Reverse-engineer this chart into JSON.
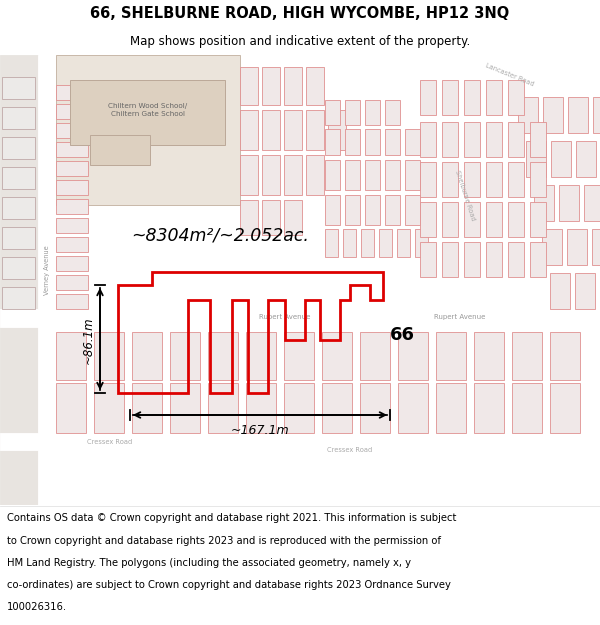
{
  "title_line1": "66, SHELBURNE ROAD, HIGH WYCOMBE, HP12 3NQ",
  "title_line2": "Map shows position and indicative extent of the property.",
  "footer_lines": [
    "Contains OS data © Crown copyright and database right 2021. This information is subject",
    "to Crown copyright and database rights 2023 and is reproduced with the permission of",
    "HM Land Registry. The polygons (including the associated geometry, namely x, y",
    "co-ordinates) are subject to Crown copyright and database rights 2023 Ordnance Survey",
    "100026316."
  ],
  "area_text": "~8304m²/~2.052ac.",
  "width_text": "~167.1m",
  "height_text": "~86.1m",
  "label_66": "66",
  "map_bg": "#f7f4f2",
  "parcel_fc": "#f0e8e8",
  "parcel_ec": "#e09090",
  "road_fc": "#ffffff",
  "school_fc": "#e8ddd5",
  "prop_ec": "#dd0000",
  "prop_fc": "none",
  "prop_lw": 2.0,
  "title_fontsize": 10.5,
  "subtitle_fontsize": 8.5,
  "footer_fontsize": 7.2,
  "figure_width": 6.0,
  "figure_height": 6.25,
  "dpi": 100
}
